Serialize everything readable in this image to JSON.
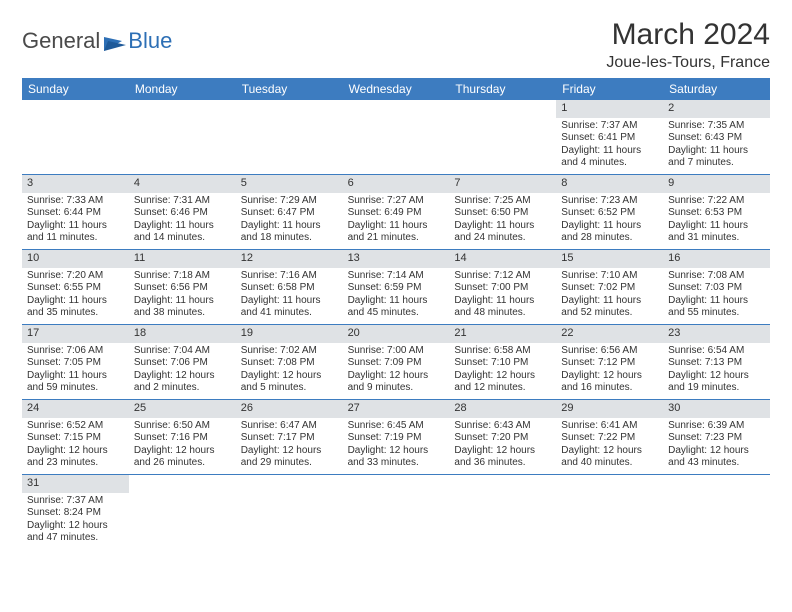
{
  "logo": {
    "textDark": "General",
    "textBlue": "Blue"
  },
  "title": "March 2024",
  "location": "Joue-les-Tours, France",
  "colors": {
    "headerBlue": "#3d7cc0",
    "grayBar": "#dfe2e5",
    "textDark": "#333333",
    "logoBlue": "#2d6fb5"
  },
  "weekdays": [
    "Sunday",
    "Monday",
    "Tuesday",
    "Wednesday",
    "Thursday",
    "Friday",
    "Saturday"
  ],
  "weeks": [
    [
      null,
      null,
      null,
      null,
      null,
      {
        "n": "1",
        "sr": "Sunrise: 7:37 AM",
        "ss": "Sunset: 6:41 PM",
        "d1": "Daylight: 11 hours",
        "d2": "and 4 minutes."
      },
      {
        "n": "2",
        "sr": "Sunrise: 7:35 AM",
        "ss": "Sunset: 6:43 PM",
        "d1": "Daylight: 11 hours",
        "d2": "and 7 minutes."
      }
    ],
    [
      {
        "n": "3",
        "sr": "Sunrise: 7:33 AM",
        "ss": "Sunset: 6:44 PM",
        "d1": "Daylight: 11 hours",
        "d2": "and 11 minutes."
      },
      {
        "n": "4",
        "sr": "Sunrise: 7:31 AM",
        "ss": "Sunset: 6:46 PM",
        "d1": "Daylight: 11 hours",
        "d2": "and 14 minutes."
      },
      {
        "n": "5",
        "sr": "Sunrise: 7:29 AM",
        "ss": "Sunset: 6:47 PM",
        "d1": "Daylight: 11 hours",
        "d2": "and 18 minutes."
      },
      {
        "n": "6",
        "sr": "Sunrise: 7:27 AM",
        "ss": "Sunset: 6:49 PM",
        "d1": "Daylight: 11 hours",
        "d2": "and 21 minutes."
      },
      {
        "n": "7",
        "sr": "Sunrise: 7:25 AM",
        "ss": "Sunset: 6:50 PM",
        "d1": "Daylight: 11 hours",
        "d2": "and 24 minutes."
      },
      {
        "n": "8",
        "sr": "Sunrise: 7:23 AM",
        "ss": "Sunset: 6:52 PM",
        "d1": "Daylight: 11 hours",
        "d2": "and 28 minutes."
      },
      {
        "n": "9",
        "sr": "Sunrise: 7:22 AM",
        "ss": "Sunset: 6:53 PM",
        "d1": "Daylight: 11 hours",
        "d2": "and 31 minutes."
      }
    ],
    [
      {
        "n": "10",
        "sr": "Sunrise: 7:20 AM",
        "ss": "Sunset: 6:55 PM",
        "d1": "Daylight: 11 hours",
        "d2": "and 35 minutes."
      },
      {
        "n": "11",
        "sr": "Sunrise: 7:18 AM",
        "ss": "Sunset: 6:56 PM",
        "d1": "Daylight: 11 hours",
        "d2": "and 38 minutes."
      },
      {
        "n": "12",
        "sr": "Sunrise: 7:16 AM",
        "ss": "Sunset: 6:58 PM",
        "d1": "Daylight: 11 hours",
        "d2": "and 41 minutes."
      },
      {
        "n": "13",
        "sr": "Sunrise: 7:14 AM",
        "ss": "Sunset: 6:59 PM",
        "d1": "Daylight: 11 hours",
        "d2": "and 45 minutes."
      },
      {
        "n": "14",
        "sr": "Sunrise: 7:12 AM",
        "ss": "Sunset: 7:00 PM",
        "d1": "Daylight: 11 hours",
        "d2": "and 48 minutes."
      },
      {
        "n": "15",
        "sr": "Sunrise: 7:10 AM",
        "ss": "Sunset: 7:02 PM",
        "d1": "Daylight: 11 hours",
        "d2": "and 52 minutes."
      },
      {
        "n": "16",
        "sr": "Sunrise: 7:08 AM",
        "ss": "Sunset: 7:03 PM",
        "d1": "Daylight: 11 hours",
        "d2": "and 55 minutes."
      }
    ],
    [
      {
        "n": "17",
        "sr": "Sunrise: 7:06 AM",
        "ss": "Sunset: 7:05 PM",
        "d1": "Daylight: 11 hours",
        "d2": "and 59 minutes."
      },
      {
        "n": "18",
        "sr": "Sunrise: 7:04 AM",
        "ss": "Sunset: 7:06 PM",
        "d1": "Daylight: 12 hours",
        "d2": "and 2 minutes."
      },
      {
        "n": "19",
        "sr": "Sunrise: 7:02 AM",
        "ss": "Sunset: 7:08 PM",
        "d1": "Daylight: 12 hours",
        "d2": "and 5 minutes."
      },
      {
        "n": "20",
        "sr": "Sunrise: 7:00 AM",
        "ss": "Sunset: 7:09 PM",
        "d1": "Daylight: 12 hours",
        "d2": "and 9 minutes."
      },
      {
        "n": "21",
        "sr": "Sunrise: 6:58 AM",
        "ss": "Sunset: 7:10 PM",
        "d1": "Daylight: 12 hours",
        "d2": "and 12 minutes."
      },
      {
        "n": "22",
        "sr": "Sunrise: 6:56 AM",
        "ss": "Sunset: 7:12 PM",
        "d1": "Daylight: 12 hours",
        "d2": "and 16 minutes."
      },
      {
        "n": "23",
        "sr": "Sunrise: 6:54 AM",
        "ss": "Sunset: 7:13 PM",
        "d1": "Daylight: 12 hours",
        "d2": "and 19 minutes."
      }
    ],
    [
      {
        "n": "24",
        "sr": "Sunrise: 6:52 AM",
        "ss": "Sunset: 7:15 PM",
        "d1": "Daylight: 12 hours",
        "d2": "and 23 minutes."
      },
      {
        "n": "25",
        "sr": "Sunrise: 6:50 AM",
        "ss": "Sunset: 7:16 PM",
        "d1": "Daylight: 12 hours",
        "d2": "and 26 minutes."
      },
      {
        "n": "26",
        "sr": "Sunrise: 6:47 AM",
        "ss": "Sunset: 7:17 PM",
        "d1": "Daylight: 12 hours",
        "d2": "and 29 minutes."
      },
      {
        "n": "27",
        "sr": "Sunrise: 6:45 AM",
        "ss": "Sunset: 7:19 PM",
        "d1": "Daylight: 12 hours",
        "d2": "and 33 minutes."
      },
      {
        "n": "28",
        "sr": "Sunrise: 6:43 AM",
        "ss": "Sunset: 7:20 PM",
        "d1": "Daylight: 12 hours",
        "d2": "and 36 minutes."
      },
      {
        "n": "29",
        "sr": "Sunrise: 6:41 AM",
        "ss": "Sunset: 7:22 PM",
        "d1": "Daylight: 12 hours",
        "d2": "and 40 minutes."
      },
      {
        "n": "30",
        "sr": "Sunrise: 6:39 AM",
        "ss": "Sunset: 7:23 PM",
        "d1": "Daylight: 12 hours",
        "d2": "and 43 minutes."
      }
    ],
    [
      {
        "n": "31",
        "sr": "Sunrise: 7:37 AM",
        "ss": "Sunset: 8:24 PM",
        "d1": "Daylight: 12 hours",
        "d2": "and 47 minutes."
      },
      null,
      null,
      null,
      null,
      null,
      null
    ]
  ]
}
